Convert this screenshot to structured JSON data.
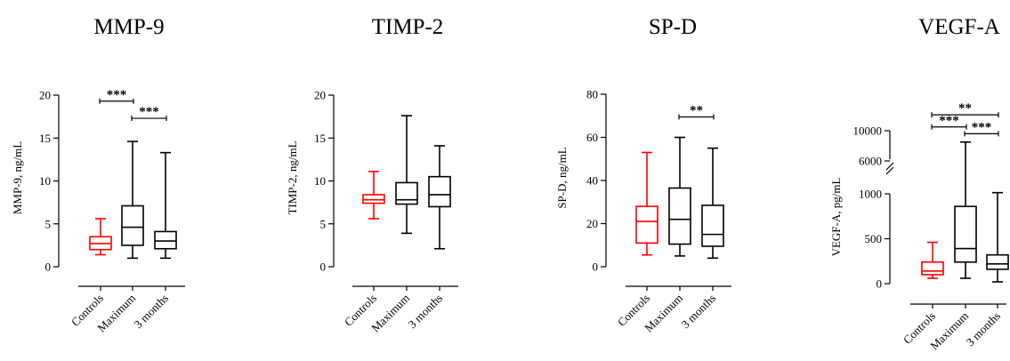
{
  "colors": {
    "control": "#ff0000",
    "default": "#000000"
  },
  "chart_data": [
    {
      "type": "boxplot",
      "title": "MMP-9",
      "ylabel": "MMP-9, ng/mL",
      "ylim": [
        0,
        20
      ],
      "yticks": [
        0,
        5,
        10,
        15,
        20
      ],
      "categories": [
        "Controls",
        "Maximum",
        "3 months"
      ],
      "boxes": [
        {
          "min": 1.4,
          "q1": 2.0,
          "median": 2.7,
          "q3": 3.5,
          "max": 5.6,
          "color": "#ff0000"
        },
        {
          "min": 1.0,
          "q1": 2.5,
          "median": 4.6,
          "q3": 7.1,
          "max": 14.6,
          "color": "#000000"
        },
        {
          "min": 1.0,
          "q1": 2.1,
          "median": 3.0,
          "q3": 4.1,
          "max": 13.3,
          "color": "#000000"
        }
      ],
      "significance": [
        {
          "from": 0,
          "to": 1,
          "label": "***",
          "y": 19.3
        },
        {
          "from": 1,
          "to": 2,
          "label": "***",
          "y": 17.3
        }
      ]
    },
    {
      "type": "boxplot",
      "title": "TIMP-2",
      "ylabel": "TIMP-2, ng/mL",
      "ylim": [
        0,
        20
      ],
      "yticks": [
        0,
        5,
        10,
        15,
        20
      ],
      "categories": [
        "Controls",
        "Maximum",
        "3 months"
      ],
      "boxes": [
        {
          "min": 5.6,
          "q1": 7.4,
          "median": 7.8,
          "q3": 8.4,
          "max": 11.1,
          "color": "#ff0000"
        },
        {
          "min": 3.9,
          "q1": 7.3,
          "median": 7.8,
          "q3": 9.8,
          "max": 17.6,
          "color": "#000000"
        },
        {
          "min": 2.1,
          "q1": 7.0,
          "median": 8.4,
          "q3": 10.5,
          "max": 14.1,
          "color": "#000000"
        }
      ],
      "significance": []
    },
    {
      "type": "boxplot",
      "title": "SP-D",
      "ylabel": "SP-D, ng/mL",
      "ylim": [
        0,
        80
      ],
      "yticks": [
        0,
        20,
        40,
        60,
        80
      ],
      "categories": [
        "Controls",
        "Maximum",
        "3 months"
      ],
      "boxes": [
        {
          "min": 5.5,
          "q1": 11.0,
          "median": 21.0,
          "q3": 28.0,
          "max": 53.0,
          "color": "#ff0000"
        },
        {
          "min": 5.0,
          "q1": 10.5,
          "median": 22.0,
          "q3": 36.5,
          "max": 60.0,
          "color": "#000000"
        },
        {
          "min": 4.0,
          "q1": 9.5,
          "median": 15.0,
          "q3": 28.5,
          "max": 55.0,
          "color": "#000000"
        }
      ],
      "significance": [
        {
          "from": 1,
          "to": 2,
          "label": "**",
          "y": 69.5
        }
      ]
    },
    {
      "type": "boxplot",
      "title": "VEGF-A",
      "ylabel": "VEGF-A, pg/mL",
      "broken_axis": true,
      "ylim_lower": [
        0,
        1000
      ],
      "ylim_upper": [
        6000,
        10000
      ],
      "yticks": [
        0,
        500,
        1000,
        6000,
        10000
      ],
      "categories": [
        "Controls",
        "Maximum",
        "3 months"
      ],
      "boxes": [
        {
          "min": 60,
          "q1": 100,
          "median": 140,
          "q3": 240,
          "max": 460,
          "color": "#ff0000"
        },
        {
          "min": 60,
          "q1": 240,
          "median": 390,
          "q3": 860,
          "max": 8500,
          "color": "#000000"
        },
        {
          "min": 20,
          "q1": 160,
          "median": 220,
          "q3": 320,
          "max": 1180,
          "color": "#000000"
        }
      ],
      "significance": [
        {
          "from": 0,
          "to": 2,
          "label": "**",
          "y": 12100
        },
        {
          "from": 0,
          "to": 1,
          "label": "***",
          "y": 10500
        },
        {
          "from": 1,
          "to": 2,
          "label": "***",
          "y": 9600
        }
      ]
    }
  ]
}
